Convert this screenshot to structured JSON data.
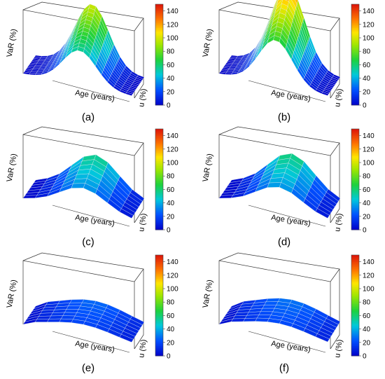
{
  "chart_data": [
    {
      "type": "surface",
      "panel": "(a)",
      "zlabel": "VaR (%)",
      "xlabel": "Age (years)",
      "ylabel": "u (%)",
      "colorbar": {
        "min": 0,
        "max": 150,
        "ticks": [
          "0",
          "20",
          "40",
          "60",
          "80",
          "100",
          "120",
          "140"
        ]
      },
      "peak_value": 100,
      "mesh": "fine",
      "profile": "peaked"
    },
    {
      "type": "surface",
      "panel": "(b)",
      "zlabel": "VaR (%)",
      "xlabel": "Age (years)",
      "ylabel": "u (%)",
      "colorbar": {
        "min": 0,
        "max": 150,
        "ticks": [
          "0",
          "20",
          "40",
          "60",
          "80",
          "100",
          "120",
          "140"
        ]
      },
      "peak_value": 130,
      "mesh": "fine",
      "profile": "peaked"
    },
    {
      "type": "surface",
      "panel": "(c)",
      "zlabel": "VaR (%)",
      "xlabel": "Age (years)",
      "ylabel": "u (%)",
      "colorbar": {
        "min": 0,
        "max": 150,
        "ticks": [
          "0",
          "20",
          "40",
          "60",
          "80",
          "100",
          "120",
          "140"
        ]
      },
      "peak_value": 60,
      "mesh": "coarse",
      "profile": "ridge"
    },
    {
      "type": "surface",
      "panel": "(d)",
      "zlabel": "VaR (%)",
      "xlabel": "Age (years)",
      "ylabel": "u (%)",
      "colorbar": {
        "min": 0,
        "max": 150,
        "ticks": [
          "0",
          "20",
          "40",
          "60",
          "80",
          "100",
          "120",
          "140"
        ]
      },
      "peak_value": 62,
      "mesh": "coarse",
      "profile": "ridge"
    },
    {
      "type": "surface",
      "panel": "(e)",
      "zlabel": "VaR (%)",
      "xlabel": "Age (years)",
      "ylabel": "u (%)",
      "colorbar": {
        "min": 0,
        "max": 150,
        "ticks": [
          "0",
          "20",
          "40",
          "60",
          "80",
          "100",
          "120",
          "140"
        ]
      },
      "peak_value": 28,
      "mesh": "coarse",
      "profile": "plateau"
    },
    {
      "type": "surface",
      "panel": "(f)",
      "zlabel": "VaR (%)",
      "xlabel": "Age (years)",
      "ylabel": "u (%)",
      "colorbar": {
        "min": 0,
        "max": 150,
        "ticks": [
          "0",
          "20",
          "40",
          "60",
          "80",
          "100",
          "120",
          "140"
        ]
      },
      "peak_value": 30,
      "mesh": "coarse",
      "profile": "plateau"
    }
  ]
}
